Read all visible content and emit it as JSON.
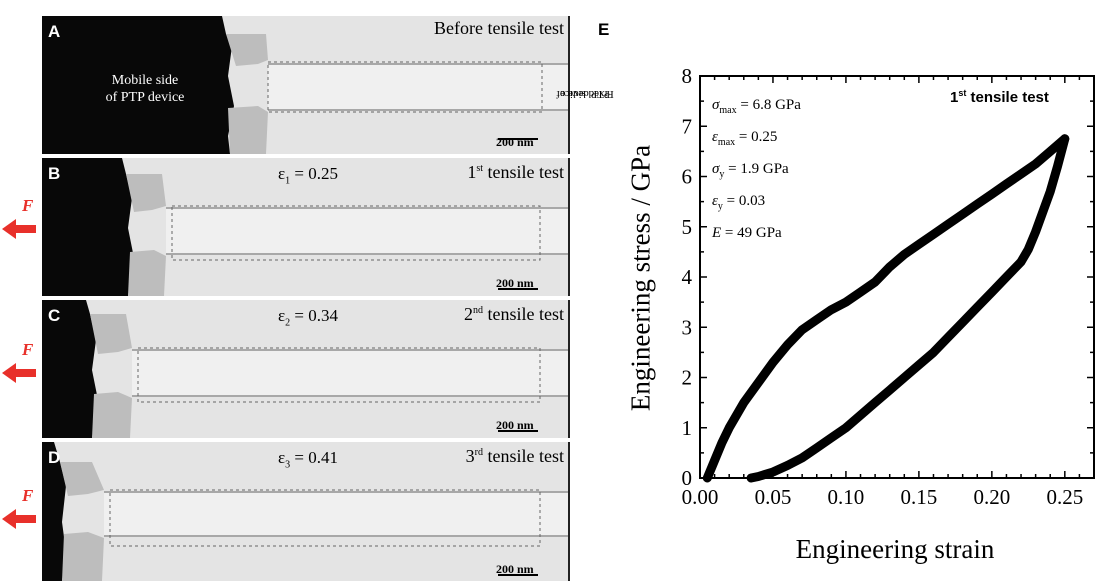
{
  "panels": [
    {
      "label": "A",
      "caption": "Before tensile test",
      "strain_sym": "",
      "strain_sub": "",
      "strain_val": "",
      "mobile_side": "Mobile side",
      "mobile_side_2": "of PTP device",
      "scale": "200 nm"
    },
    {
      "label": "B",
      "caption_pre": "1",
      "caption_sup": "st",
      "caption_post": " tensile test",
      "strain_sym": "ε",
      "strain_sub": "1",
      "strain_val": " = 0.25",
      "scale": "200 nm"
    },
    {
      "label": "C",
      "caption_pre": "2",
      "caption_sup": "nd",
      "caption_post": " tensile test",
      "strain_sym": "ε",
      "strain_sub": "2",
      "strain_val": " = 0.34",
      "scale": "200 nm"
    },
    {
      "label": "D",
      "caption_pre": "3",
      "caption_sup": "rd",
      "caption_post": " tensile test",
      "strain_sym": "ε",
      "strain_sub": "3",
      "strain_val": " = 0.41",
      "scale": "200 nm"
    }
  ],
  "force_label": "F",
  "fixed_side_1": "Fixed side of",
  "fixed_side_2": "PTP device",
  "chart_label": "E",
  "chart_data": {
    "type": "line",
    "title_pre": "1",
    "title_sup": "st",
    "title_post": " tensile test",
    "xlabel": "Engineering strain",
    "ylabel": "Engineering stress / GPa",
    "xlim": [
      0,
      0.27
    ],
    "ylim": [
      0,
      8
    ],
    "xticks": [
      "0.00",
      "0.05",
      "0.10",
      "0.15",
      "0.20",
      "0.25"
    ],
    "xtick_values": [
      0,
      0.05,
      0.1,
      0.15,
      0.2,
      0.25
    ],
    "yticks": [
      "0",
      "1",
      "2",
      "3",
      "4",
      "5",
      "6",
      "7",
      "8"
    ],
    "ytick_values": [
      0,
      1,
      2,
      3,
      4,
      5,
      6,
      7,
      8
    ],
    "loading": {
      "x": [
        0.005,
        0.01,
        0.015,
        0.02,
        0.03,
        0.04,
        0.05,
        0.06,
        0.07,
        0.08,
        0.09,
        0.1,
        0.11,
        0.12,
        0.13,
        0.14,
        0.15,
        0.16,
        0.17,
        0.18,
        0.19,
        0.2,
        0.21,
        0.22,
        0.23,
        0.24,
        0.25
      ],
      "y": [
        0.0,
        0.35,
        0.7,
        1.0,
        1.5,
        1.9,
        2.3,
        2.65,
        2.95,
        3.15,
        3.35,
        3.5,
        3.7,
        3.9,
        4.2,
        4.45,
        4.65,
        4.85,
        5.05,
        5.25,
        5.45,
        5.65,
        5.85,
        6.05,
        6.25,
        6.5,
        6.75
      ]
    },
    "unloading": {
      "x": [
        0.25,
        0.245,
        0.24,
        0.235,
        0.23,
        0.225,
        0.22,
        0.21,
        0.2,
        0.19,
        0.18,
        0.17,
        0.16,
        0.15,
        0.14,
        0.13,
        0.12,
        0.11,
        0.1,
        0.09,
        0.08,
        0.07,
        0.06,
        0.05,
        0.04,
        0.035
      ],
      "y": [
        6.75,
        6.2,
        5.7,
        5.3,
        4.9,
        4.55,
        4.3,
        4.0,
        3.7,
        3.4,
        3.1,
        2.8,
        2.5,
        2.25,
        2.0,
        1.75,
        1.5,
        1.25,
        1.0,
        0.8,
        0.6,
        0.4,
        0.25,
        0.12,
        0.03,
        0.0
      ]
    },
    "annotations": [
      {
        "sym": "σ",
        "sub": "max",
        "text": " = 6.8 GPa"
      },
      {
        "sym": "ε",
        "sub": "max",
        "text": " = 0.25"
      },
      {
        "sym": "σ",
        "sub": "y",
        "text": " = 1.9 GPa"
      },
      {
        "sym": "ε",
        "sub": "y",
        "text": " = 0.03"
      },
      {
        "sym": "E",
        "sub": "",
        "text": " = 49 GPa"
      }
    ]
  },
  "colors": {
    "force_arrow": "#e8302a",
    "background": "#ffffff",
    "plot": "#000000"
  }
}
